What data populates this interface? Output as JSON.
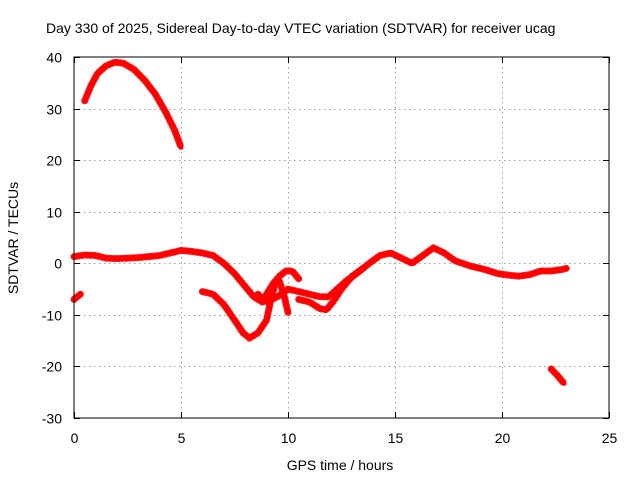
{
  "chart_data": {
    "type": "line",
    "title": "Day 330 of 2025, Sidereal Day-to-day VTEC variation (SDTVAR) for receiver ucag",
    "xlabel": "GPS time / hours",
    "ylabel": "SDTVAR / TECUs",
    "xlim": [
      0,
      25
    ],
    "ylim": [
      -30,
      40
    ],
    "xticks": [
      0,
      5,
      10,
      15,
      20,
      25
    ],
    "xtick_labels": [
      "0",
      "5",
      "10",
      "15",
      "20",
      "25"
    ],
    "yticks": [
      -30,
      -20,
      -10,
      0,
      10,
      20,
      30,
      40
    ],
    "ytick_labels": [
      "-30",
      "-20",
      "-10",
      "0",
      "10",
      "20",
      "30",
      "40"
    ],
    "grid": true,
    "series_color": "#ff0000",
    "series": [
      {
        "name": "arc-start",
        "points": [
          [
            0.0,
            -7.0
          ],
          [
            0.3,
            -6.0
          ]
        ]
      },
      {
        "name": "arc-high",
        "points": [
          [
            0.5,
            31.5
          ],
          [
            0.8,
            34.5
          ],
          [
            1.1,
            36.8
          ],
          [
            1.5,
            38.3
          ],
          [
            1.9,
            39.0
          ],
          [
            2.3,
            38.8
          ],
          [
            2.8,
            37.6
          ],
          [
            3.3,
            35.5
          ],
          [
            3.8,
            32.8
          ],
          [
            4.3,
            29.2
          ],
          [
            4.7,
            25.8
          ],
          [
            5.0,
            22.5
          ]
        ]
      },
      {
        "name": "arc-main-early",
        "points": [
          [
            0.0,
            1.3
          ],
          [
            0.5,
            1.6
          ],
          [
            1.0,
            1.5
          ],
          [
            1.5,
            1.0
          ],
          [
            2.0,
            0.9
          ],
          [
            2.5,
            1.0
          ],
          [
            3.0,
            1.1
          ],
          [
            3.5,
            1.3
          ],
          [
            4.0,
            1.5
          ],
          [
            4.5,
            2.0
          ],
          [
            5.0,
            2.5
          ],
          [
            5.5,
            2.3
          ],
          [
            6.0,
            2.0
          ],
          [
            6.5,
            1.5
          ],
          [
            7.0,
            0.0
          ],
          [
            7.5,
            -2.0
          ],
          [
            8.0,
            -4.5
          ],
          [
            8.4,
            -6.5
          ],
          [
            8.8,
            -7.5
          ],
          [
            9.0,
            -6.0
          ],
          [
            9.3,
            -4.0
          ],
          [
            9.6,
            -2.5
          ],
          [
            9.9,
            -1.5
          ],
          [
            10.2,
            -1.5
          ],
          [
            10.5,
            -3.0
          ]
        ]
      },
      {
        "name": "arc-dip",
        "points": [
          [
            6.0,
            -5.5
          ],
          [
            6.5,
            -6.0
          ],
          [
            7.0,
            -8.0
          ],
          [
            7.5,
            -11.0
          ],
          [
            7.9,
            -13.5
          ],
          [
            8.2,
            -14.5
          ],
          [
            8.6,
            -13.5
          ],
          [
            9.0,
            -11.0
          ],
          [
            9.2,
            -7.0
          ],
          [
            9.4,
            -4.0
          ],
          [
            9.6,
            -3.5
          ],
          [
            9.8,
            -6.0
          ],
          [
            10.0,
            -9.5
          ]
        ]
      },
      {
        "name": "arc-main-late",
        "points": [
          [
            8.6,
            -6.0
          ],
          [
            9.0,
            -7.5
          ],
          [
            9.5,
            -6.5
          ],
          [
            10.0,
            -5.0
          ],
          [
            10.5,
            -5.5
          ],
          [
            11.0,
            -6.0
          ],
          [
            11.5,
            -6.5
          ],
          [
            11.9,
            -6.5
          ],
          [
            12.3,
            -5.0
          ],
          [
            12.7,
            -3.5
          ],
          [
            13.2,
            -2.0
          ],
          [
            13.8,
            0.0
          ],
          [
            14.3,
            1.5
          ],
          [
            14.8,
            2.0
          ],
          [
            15.3,
            1.0
          ],
          [
            15.8,
            0.0
          ],
          [
            16.3,
            1.5
          ],
          [
            16.8,
            3.0
          ],
          [
            17.3,
            2.0
          ],
          [
            17.8,
            0.5
          ],
          [
            18.5,
            -0.5
          ],
          [
            19.2,
            -1.2
          ],
          [
            19.8,
            -2.0
          ],
          [
            20.3,
            -2.3
          ],
          [
            20.8,
            -2.5
          ],
          [
            21.3,
            -2.2
          ],
          [
            21.8,
            -1.5
          ],
          [
            22.3,
            -1.5
          ],
          [
            22.8,
            -1.2
          ],
          [
            23.0,
            -1.0
          ]
        ]
      },
      {
        "name": "arc-low-branch",
        "points": [
          [
            10.5,
            -7.0
          ],
          [
            11.0,
            -7.5
          ],
          [
            11.5,
            -8.8
          ],
          [
            11.8,
            -9.0
          ],
          [
            12.1,
            -7.5
          ],
          [
            12.5,
            -5.0
          ],
          [
            13.0,
            -2.5
          ],
          [
            13.5,
            -1.0
          ]
        ]
      },
      {
        "name": "arc-end",
        "points": [
          [
            22.3,
            -20.5
          ],
          [
            22.6,
            -21.8
          ],
          [
            22.9,
            -23.3
          ]
        ]
      }
    ]
  }
}
